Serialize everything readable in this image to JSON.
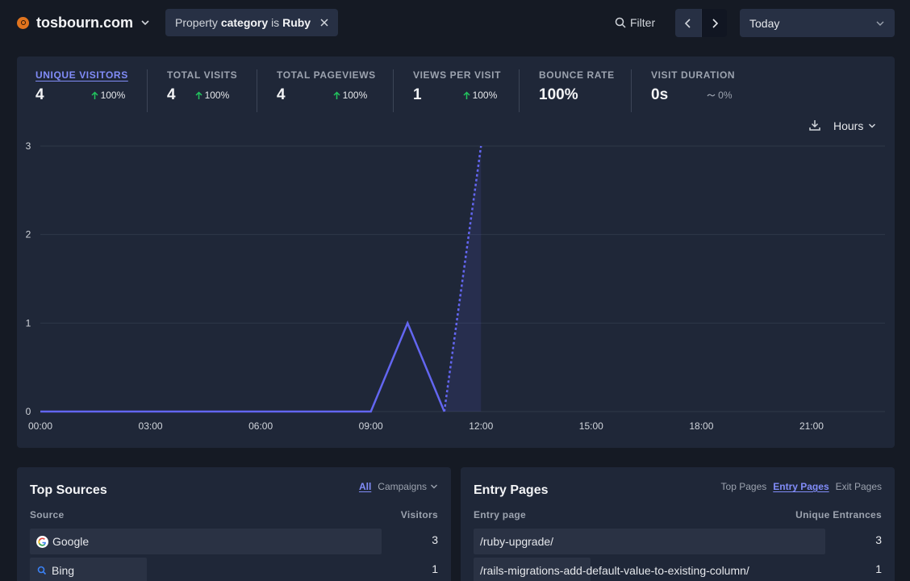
{
  "site": {
    "name": "tosbourn.com",
    "logo_icon": "site-favicon-icon"
  },
  "filter_pill": {
    "prefix": "Property",
    "property": "category",
    "operator": "is",
    "value": "Ruby"
  },
  "toolbar": {
    "filter_label": "Filter",
    "date_range": "Today"
  },
  "stats": [
    {
      "label": "UNIQUE VISITORS",
      "value": "4",
      "change": "100%",
      "trend": "up"
    },
    {
      "label": "TOTAL VISITS",
      "value": "4",
      "change": "100%",
      "trend": "up"
    },
    {
      "label": "TOTAL PAGEVIEWS",
      "value": "4",
      "change": "100%",
      "trend": "up"
    },
    {
      "label": "VIEWS PER VISIT",
      "value": "1",
      "change": "100%",
      "trend": "up"
    },
    {
      "label": "BOUNCE RATE",
      "value": "100%",
      "change": "",
      "trend": "none"
    },
    {
      "label": "VISIT DURATION",
      "value": "0s",
      "change": "0%",
      "trend": "flat"
    }
  ],
  "interval": "Hours",
  "chart_data": {
    "type": "line",
    "title": "",
    "xlabel": "",
    "ylabel": "",
    "x": [
      "00:00",
      "01:00",
      "02:00",
      "03:00",
      "04:00",
      "05:00",
      "06:00",
      "07:00",
      "08:00",
      "09:00",
      "10:00",
      "11:00",
      "12:00"
    ],
    "x_ticks": [
      "00:00",
      "03:00",
      "06:00",
      "09:00",
      "12:00",
      "15:00",
      "18:00",
      "21:00"
    ],
    "y_ticks": [
      0,
      1,
      2,
      3
    ],
    "ylim": [
      0,
      3
    ],
    "x_range": [
      "00:00",
      "23:00"
    ],
    "grid": true,
    "series": [
      {
        "values": [
          0,
          0,
          0,
          0,
          0,
          0,
          0,
          0,
          0,
          0,
          1,
          0,
          3
        ],
        "dashed_from_index": 11
      }
    ],
    "line_color": "#6366f1"
  },
  "sources": {
    "title": "Top Sources",
    "tabs": [
      "All",
      "Campaigns"
    ],
    "active_tab": "All",
    "col_label": "Source",
    "col_value": "Visitors",
    "rows": [
      {
        "label": "Google",
        "value": "3",
        "icon": "google-icon",
        "fraction": 1.0
      },
      {
        "label": "Bing",
        "value": "1",
        "icon": "bing-search-icon",
        "fraction": 0.333
      }
    ]
  },
  "pages": {
    "title": "Entry Pages",
    "tabs": [
      "Top Pages",
      "Entry Pages",
      "Exit Pages"
    ],
    "active_tab": "Entry Pages",
    "col_label": "Entry page",
    "col_value": "Unique Entrances",
    "rows": [
      {
        "label": "/ruby-upgrade/",
        "value": "3",
        "fraction": 1.0
      },
      {
        "label": "/rails-migrations-add-default-value-to-existing-column/",
        "value": "1",
        "fraction": 0.333
      }
    ]
  }
}
